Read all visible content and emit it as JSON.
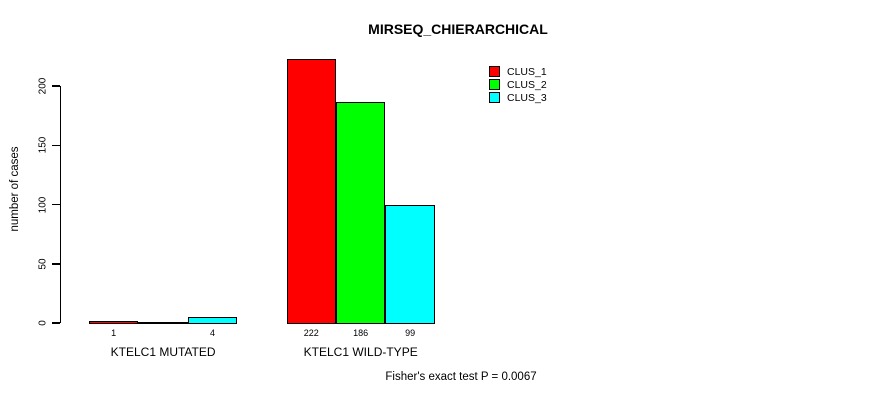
{
  "chart_data": {
    "type": "bar",
    "title": "MIRSEQ_CHIERARCHICAL",
    "ylabel": "number of cases",
    "xlabel": "",
    "footer": "Fisher's exact test P = 0.0067",
    "yticks": [
      0,
      50,
      100,
      150,
      200
    ],
    "ylim": [
      0,
      200
    ],
    "grid": false,
    "legend_position": "top-right",
    "categories": [
      "KTELC1 MUTATED",
      "KTELC1 WILD-TYPE"
    ],
    "series": [
      {
        "name": "CLUS_1",
        "color": "#ff0000",
        "values": [
          1,
          222
        ]
      },
      {
        "name": "CLUS_2",
        "color": "#00ff00",
        "values": [
          0,
          186
        ]
      },
      {
        "name": "CLUS_3",
        "color": "#00ffff",
        "values": [
          4,
          99
        ]
      }
    ],
    "bar_value_labels": [
      [
        "1",
        "",
        "4"
      ],
      [
        "222",
        "186",
        "99"
      ]
    ],
    "bar_border_color": "#000000",
    "background_color": "#ffffff"
  }
}
